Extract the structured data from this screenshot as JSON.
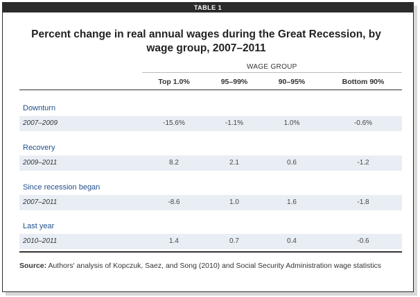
{
  "tab_label": "TABLE 1",
  "title": "Percent change in real annual wages during the Great Recession, by wage group, 2007–2011",
  "group_header": "WAGE GROUP",
  "columns": [
    "Top 1.0%",
    "95–99%",
    "90–95%",
    "Bottom 90%"
  ],
  "sections": [
    {
      "label": "Downturn",
      "period": "2007–2009",
      "values": [
        "-15.6%",
        "-1.1%",
        "1.0%",
        "-0.6%"
      ]
    },
    {
      "label": "Recovery",
      "period": "2009–2011",
      "values": [
        "8.2",
        "2.1",
        "0.6",
        "-1.2"
      ]
    },
    {
      "label": "Since recession began",
      "period": "2007–2011",
      "values": [
        "-8.6",
        "1.0",
        "1.6",
        "-1.8"
      ]
    },
    {
      "label": "Last year",
      "period": "2010–2011",
      "values": [
        "1.4",
        "0.7",
        "0.4",
        "-0.6"
      ]
    }
  ],
  "source": {
    "label": "Source:",
    "text": "Authors' analysis of Kopczuk, Saez, and Song (2010) and Social Security Administration wage statistics"
  },
  "colors": {
    "section_label": "#1f4f8a",
    "row_shade": "#e9eef5",
    "tab_bg": "#2b2b2b"
  }
}
